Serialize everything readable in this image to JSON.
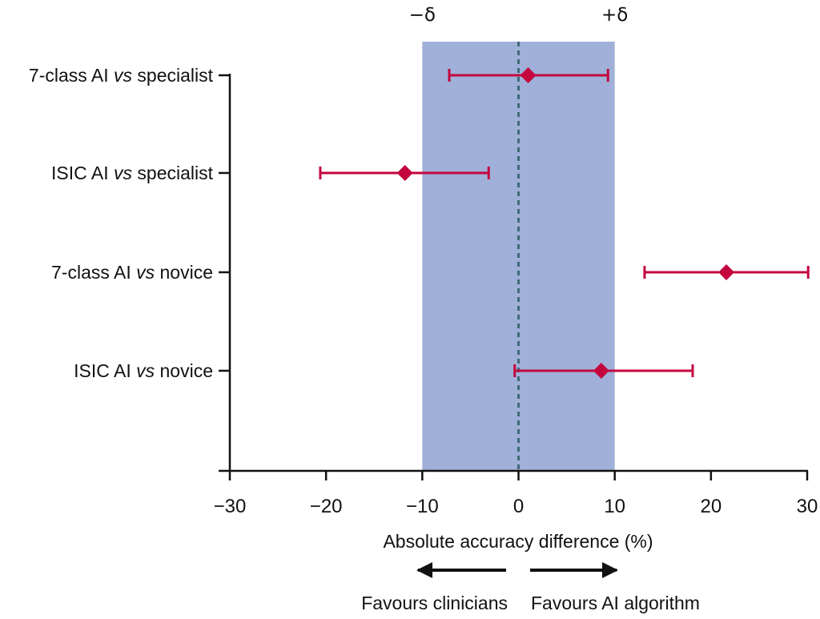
{
  "chart_data": {
    "type": "forest",
    "title": "",
    "xlabel": "Absolute accuracy difference (%)",
    "ylabel": "",
    "xlim": [
      -30,
      30
    ],
    "xticks": [
      -30,
      -20,
      -10,
      0,
      10,
      20,
      30
    ],
    "xtick_labels": [
      "−30",
      "−20",
      "−10",
      "0",
      "10",
      "20",
      "30"
    ],
    "grid": false,
    "equivalence_band": {
      "from": -10,
      "to": 10,
      "color": "#a0b0d8",
      "lower_label": "−δ",
      "upper_label": "+δ"
    },
    "reference_line": {
      "x": 0,
      "style": "dashed",
      "color": "#3f6a78"
    },
    "marker_color": "#c4063f",
    "rows": [
      {
        "label_main": "7-class AI ",
        "label_italic": "vs",
        "label_rest": " specialist",
        "estimate": 1.0,
        "ci_low": -7.2,
        "ci_high": 9.3
      },
      {
        "label_main": "ISIC AI ",
        "label_italic": "vs",
        "label_rest": " specialist",
        "estimate": -11.8,
        "ci_low": -20.6,
        "ci_high": -3.1
      },
      {
        "label_main": "7-class AI ",
        "label_italic": "vs",
        "label_rest": " novice",
        "estimate": 21.6,
        "ci_low": 13.1,
        "ci_high": 30.1
      },
      {
        "label_main": "ISIC AI ",
        "label_italic": "vs",
        "label_rest": " novice",
        "estimate": 8.6,
        "ci_low": -0.4,
        "ci_high": 18.1
      }
    ],
    "direction_labels": {
      "left": "Favours clinicians",
      "right": "Favours AI algorithm"
    }
  }
}
